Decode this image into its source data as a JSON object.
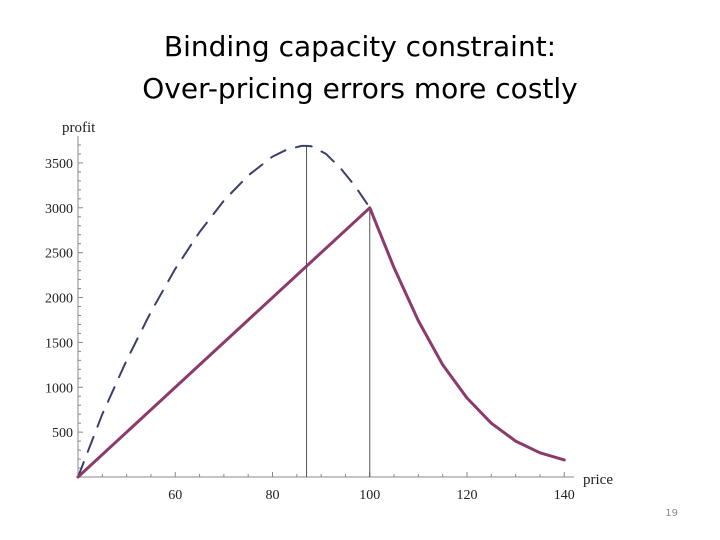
{
  "slide": {
    "title_line1": "Binding capacity constraint:",
    "title_line2": "Over-pricing errors more costly",
    "page_number": "19"
  },
  "chart_data": {
    "type": "line",
    "xlabel": "price",
    "ylabel": "profit",
    "xlim": [
      40,
      142
    ],
    "ylim": [
      0,
      3800
    ],
    "x_ticks": [
      60,
      80,
      100,
      120,
      140
    ],
    "y_ticks": [
      500,
      1000,
      1500,
      2000,
      2500,
      3000,
      3500
    ],
    "series": [
      {
        "style": "dashed",
        "color": "#3b3f6e",
        "x": [
          40,
          45,
          50,
          55,
          60,
          65,
          70,
          75,
          80,
          83,
          86,
          87,
          88,
          91,
          94,
          97,
          100
        ],
        "y": [
          0,
          700,
          1300,
          1840,
          2320,
          2730,
          3080,
          3360,
          3570,
          3650,
          3690,
          3690,
          3685,
          3600,
          3440,
          3240,
          3000
        ]
      },
      {
        "style": "solid",
        "color": "#8b3a6b",
        "x": [
          40,
          100,
          105,
          110,
          115,
          120,
          125,
          130,
          135,
          140
        ],
        "y": [
          0,
          3000,
          2330,
          1740,
          1250,
          880,
          600,
          400,
          270,
          190
        ]
      }
    ],
    "vertical_lines": [
      87,
      100
    ]
  }
}
